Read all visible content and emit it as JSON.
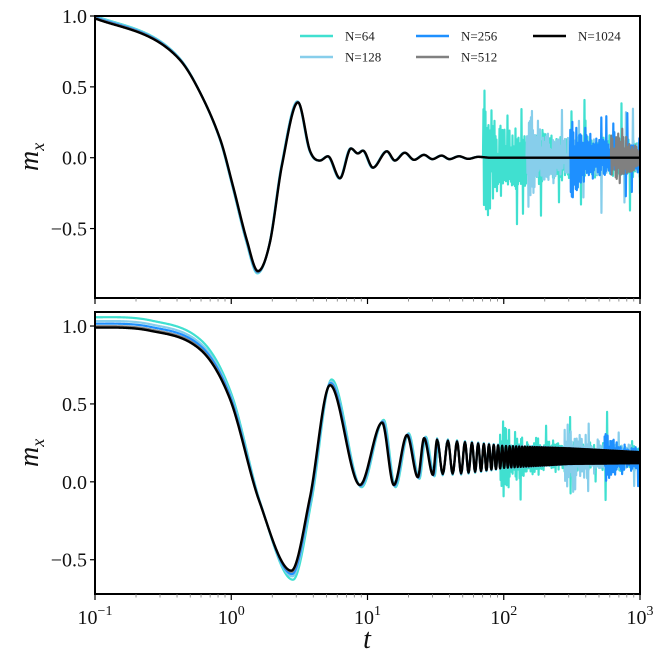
{
  "chart_data": [
    {
      "type": "line",
      "panel": "top",
      "xscale": "log",
      "xlim": [
        0.1,
        1000
      ],
      "ylim": [
        -0.99,
        1.0
      ],
      "xlabel": "",
      "ylabel": {
        "base": "m",
        "sub": "x"
      },
      "xticks": [],
      "yticks": [
        {
          "value": 1.0,
          "label": "1.0"
        },
        {
          "value": 0.5,
          "label": "0.5"
        },
        {
          "value": 0.0,
          "label": "0.0"
        },
        {
          "value": -0.5,
          "label": "−0.5"
        }
      ],
      "legend": {
        "placement": "top-right",
        "columns": 3
      },
      "series": [
        {
          "name": "N=64",
          "color": "#40e0d0",
          "noise_onset_t": 71,
          "noise_amplitude": 0.55
        },
        {
          "name": "N=128",
          "color": "#87ceeb",
          "noise_onset_t": 148,
          "noise_amplitude": 0.45
        },
        {
          "name": "N=256",
          "color": "#1e90ff",
          "noise_onset_t": 308,
          "noise_amplitude": 0.35
        },
        {
          "name": "N=512",
          "color": "#808080",
          "noise_onset_t": 615,
          "noise_amplitude": 0.25
        },
        {
          "name": "N=1024",
          "color": "#000000",
          "points": [
            [
              0.1,
              0.98
            ],
            [
              0.109,
              0.97
            ],
            [
              0.253,
              0.85
            ],
            [
              0.42,
              0.69
            ],
            [
              0.59,
              0.46
            ],
            [
              0.83,
              0.13
            ],
            [
              1.03,
              -0.2
            ],
            [
              1.3,
              -0.58
            ],
            [
              1.57,
              -0.8
            ],
            [
              1.92,
              -0.6
            ],
            [
              2.36,
              -0.05
            ],
            [
              3.09,
              0.39
            ],
            [
              3.78,
              0.05
            ],
            [
              4.48,
              -0.02
            ],
            [
              5.13,
              0.01
            ],
            [
              6.28,
              -0.145
            ],
            [
              7.57,
              0.065
            ],
            [
              8.51,
              0.03
            ],
            [
              9.27,
              0.05
            ],
            [
              10.97,
              -0.07
            ],
            [
              13.9,
              0.045
            ],
            [
              15.9,
              -0.02
            ],
            [
              18.8,
              0.035
            ],
            [
              22,
              -0.015
            ],
            [
              26,
              0.02
            ],
            [
              30,
              -0.01
            ],
            [
              35,
              0.015
            ],
            [
              40,
              -0.01
            ],
            [
              47,
              0.01
            ],
            [
              55,
              -0.008
            ],
            [
              65,
              0.006
            ],
            [
              80,
              0.0
            ],
            [
              1000,
              0.0
            ]
          ]
        }
      ]
    },
    {
      "type": "line",
      "panel": "bottom",
      "xscale": "log",
      "xlim": [
        0.1,
        1000
      ],
      "ylim": [
        -0.72,
        1.09
      ],
      "xlabel": "t",
      "ylabel": {
        "base": "m",
        "sub": "x"
      },
      "xticks": [
        {
          "value": 0.1,
          "base": "10",
          "exp": "−1"
        },
        {
          "value": 1,
          "base": "10",
          "exp": "0"
        },
        {
          "value": 10,
          "base": "10",
          "exp": "1"
        },
        {
          "value": 100,
          "base": "10",
          "exp": "2"
        },
        {
          "value": 1000,
          "base": "10",
          "exp": "3"
        }
      ],
      "yticks": [
        {
          "value": 1.0,
          "label": "1.0"
        },
        {
          "value": 0.5,
          "label": "0.5"
        },
        {
          "value": 0.0,
          "label": "0.0"
        },
        {
          "value": -0.5,
          "label": "−0.5"
        }
      ],
      "series": [
        {
          "N": 64,
          "color": "#40e0d0",
          "noise_onset_t": 94,
          "noise_amplitude": 0.32
        },
        {
          "N": 128,
          "color": "#87ceeb",
          "noise_onset_t": 280,
          "noise_amplitude": 0.28
        },
        {
          "N": 256,
          "color": "#1e90ff",
          "noise_onset_t": 550,
          "noise_amplitude": 0.2
        },
        {
          "N": 512,
          "color": "#808080"
        },
        {
          "N": 1024,
          "color": "#000000",
          "points": [
            [
              0.1,
              0.99
            ],
            [
              0.253,
              0.97
            ],
            [
              0.59,
              0.85
            ],
            [
              0.98,
              0.53
            ],
            [
              1.6,
              -0.12
            ],
            [
              2.76,
              -0.57
            ],
            [
              3.78,
              -0.1
            ],
            [
              5.31,
              0.62
            ],
            [
              8.8,
              -0.02
            ],
            [
              12.8,
              0.38
            ],
            [
              15.6,
              -0.02
            ],
            [
              19.5,
              0.3
            ],
            [
              23.4,
              0.03
            ],
            [
              26,
              0.28
            ],
            [
              30.2,
              0.045
            ],
            [
              32.4,
              0.27
            ]
          ],
          "oscillation_band": [
            {
              "t": 32.4,
              "center": 0.16,
              "half_width": 0.11
            },
            {
              "t": 50,
              "center": 0.155,
              "half_width": 0.1
            },
            {
              "t": 100,
              "center": 0.16,
              "half_width": 0.07
            },
            {
              "t": 300,
              "center": 0.165,
              "half_width": 0.05
            },
            {
              "t": 1000,
              "center": 0.155,
              "half_width": 0.035
            }
          ]
        }
      ]
    }
  ]
}
